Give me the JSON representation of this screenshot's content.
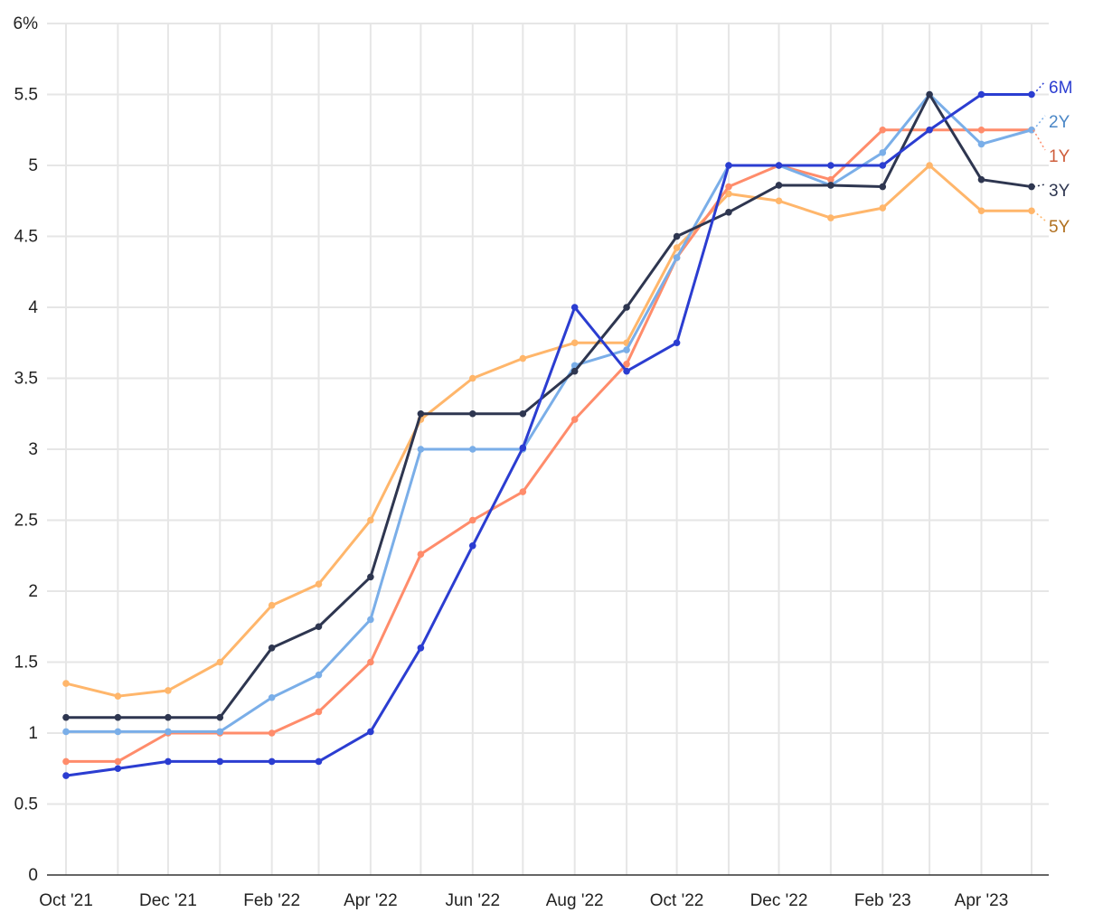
{
  "chart_data": {
    "type": "line",
    "title": "",
    "xlabel": "",
    "ylabel": "",
    "ylim": [
      0,
      6
    ],
    "y_ticks": [
      "0",
      "0.5",
      "1",
      "1.5",
      "2",
      "2.5",
      "3",
      "3.5",
      "4",
      "4.5",
      "5",
      "5.5",
      "6%"
    ],
    "x_tick_labels": [
      {
        "date": "2021-10-01",
        "label": "Oct '21"
      },
      {
        "date": "2021-12-01",
        "label": "Dec '21"
      },
      {
        "date": "2022-02-01",
        "label": "Feb '22"
      },
      {
        "date": "2022-04-01",
        "label": "Apr '22"
      },
      {
        "date": "2022-06-01",
        "label": "Jun '22"
      },
      {
        "date": "2022-08-01",
        "label": "Aug '22"
      },
      {
        "date": "2022-10-01",
        "label": "Oct '22"
      },
      {
        "date": "2022-12-01",
        "label": "Dec '22"
      },
      {
        "date": "2023-02-01",
        "label": "Feb '23"
      },
      {
        "date": "2023-04-01",
        "label": "Apr '23"
      }
    ],
    "grid": true,
    "legend": "direct labels at right end",
    "x": [
      "2021-10-01",
      "2021-11-01",
      "2021-12-01",
      "2022-01-01",
      "2022-02-01",
      "2022-03-01",
      "2022-04-01",
      "2022-05-01",
      "2022-06-01",
      "2022-07-01",
      "2022-08-01",
      "2022-09-01",
      "2022-10-01",
      "2022-11-01",
      "2022-12-01",
      "2023-01-01",
      "2023-02-01",
      "2023-03-01",
      "2023-04-01",
      "2023-05-01"
    ],
    "series": [
      {
        "name": "6M",
        "color": "#2b3dd1",
        "label_color": "#2b3dd1",
        "values": [
          0.7,
          0.75,
          0.8,
          0.8,
          0.8,
          0.8,
          1.01,
          1.6,
          2.32,
          3.01,
          4.0,
          3.55,
          3.75,
          5.0,
          5.0,
          5.0,
          5.0,
          5.25,
          5.5,
          5.5
        ]
      },
      {
        "name": "2Y",
        "color": "#7aaee8",
        "label_color": "#4a86c6",
        "values": [
          1.01,
          1.01,
          1.01,
          1.01,
          1.25,
          1.41,
          1.8,
          3.0,
          3.0,
          3.0,
          3.59,
          3.7,
          4.35,
          5.0,
          5.0,
          4.86,
          5.09,
          5.5,
          5.15,
          5.25
        ]
      },
      {
        "name": "1Y",
        "color": "#ff8c6b",
        "label_color": "#cf5e3c",
        "values": [
          0.8,
          0.8,
          1.0,
          1.0,
          1.0,
          1.15,
          1.5,
          2.26,
          2.5,
          2.7,
          3.21,
          3.6,
          4.35,
          4.85,
          5.0,
          4.9,
          5.25,
          5.25,
          5.25,
          5.25
        ]
      },
      {
        "name": "3Y",
        "color": "#2e3650",
        "label_color": "#2e3650",
        "values": [
          1.11,
          1.11,
          1.11,
          1.11,
          1.6,
          1.75,
          2.1,
          3.25,
          3.25,
          3.25,
          3.55,
          4.0,
          4.5,
          4.67,
          4.86,
          4.86,
          4.85,
          5.5,
          4.9,
          4.85
        ]
      },
      {
        "name": "5Y",
        "color": "#ffb66b",
        "label_color": "#b0701f",
        "values": [
          1.35,
          1.26,
          1.3,
          1.5,
          1.9,
          2.05,
          2.5,
          3.21,
          3.5,
          3.64,
          3.75,
          3.75,
          4.42,
          4.8,
          4.75,
          4.63,
          4.7,
          5.0,
          4.68,
          4.68
        ]
      }
    ]
  }
}
